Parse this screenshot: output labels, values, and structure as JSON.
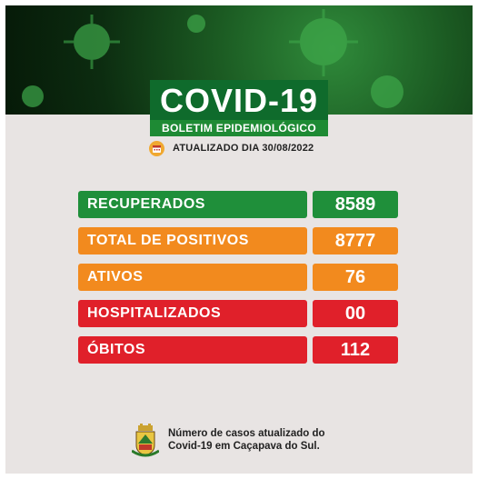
{
  "header": {
    "title": "COVID-19",
    "subtitle": "BOLETIM EPIDEMIOLÓGICO",
    "updated": "ATUALIZADO DIA 30/08/2022"
  },
  "stats": [
    {
      "label": "RECUPERADOS",
      "value": "8589",
      "color": "#1f8f3a"
    },
    {
      "label": "TOTAL DE POSITIVOS",
      "value": "8777",
      "color": "#f28a1e"
    },
    {
      "label": "ATIVOS",
      "value": "76",
      "color": "#f28a1e"
    },
    {
      "label": "HOSPITALIZADOS",
      "value": "00",
      "color": "#e0202a"
    },
    {
      "label": "ÓBITOS",
      "value": "112",
      "color": "#e0202a"
    }
  ],
  "footer": {
    "line1": "Número de casos atualizado do",
    "line2": "Covid-19 em Caçapava do Sul."
  },
  "icons": {
    "calendar": "calendar-icon",
    "crest": "municipal-crest-icon",
    "virus": "virus-icon"
  }
}
